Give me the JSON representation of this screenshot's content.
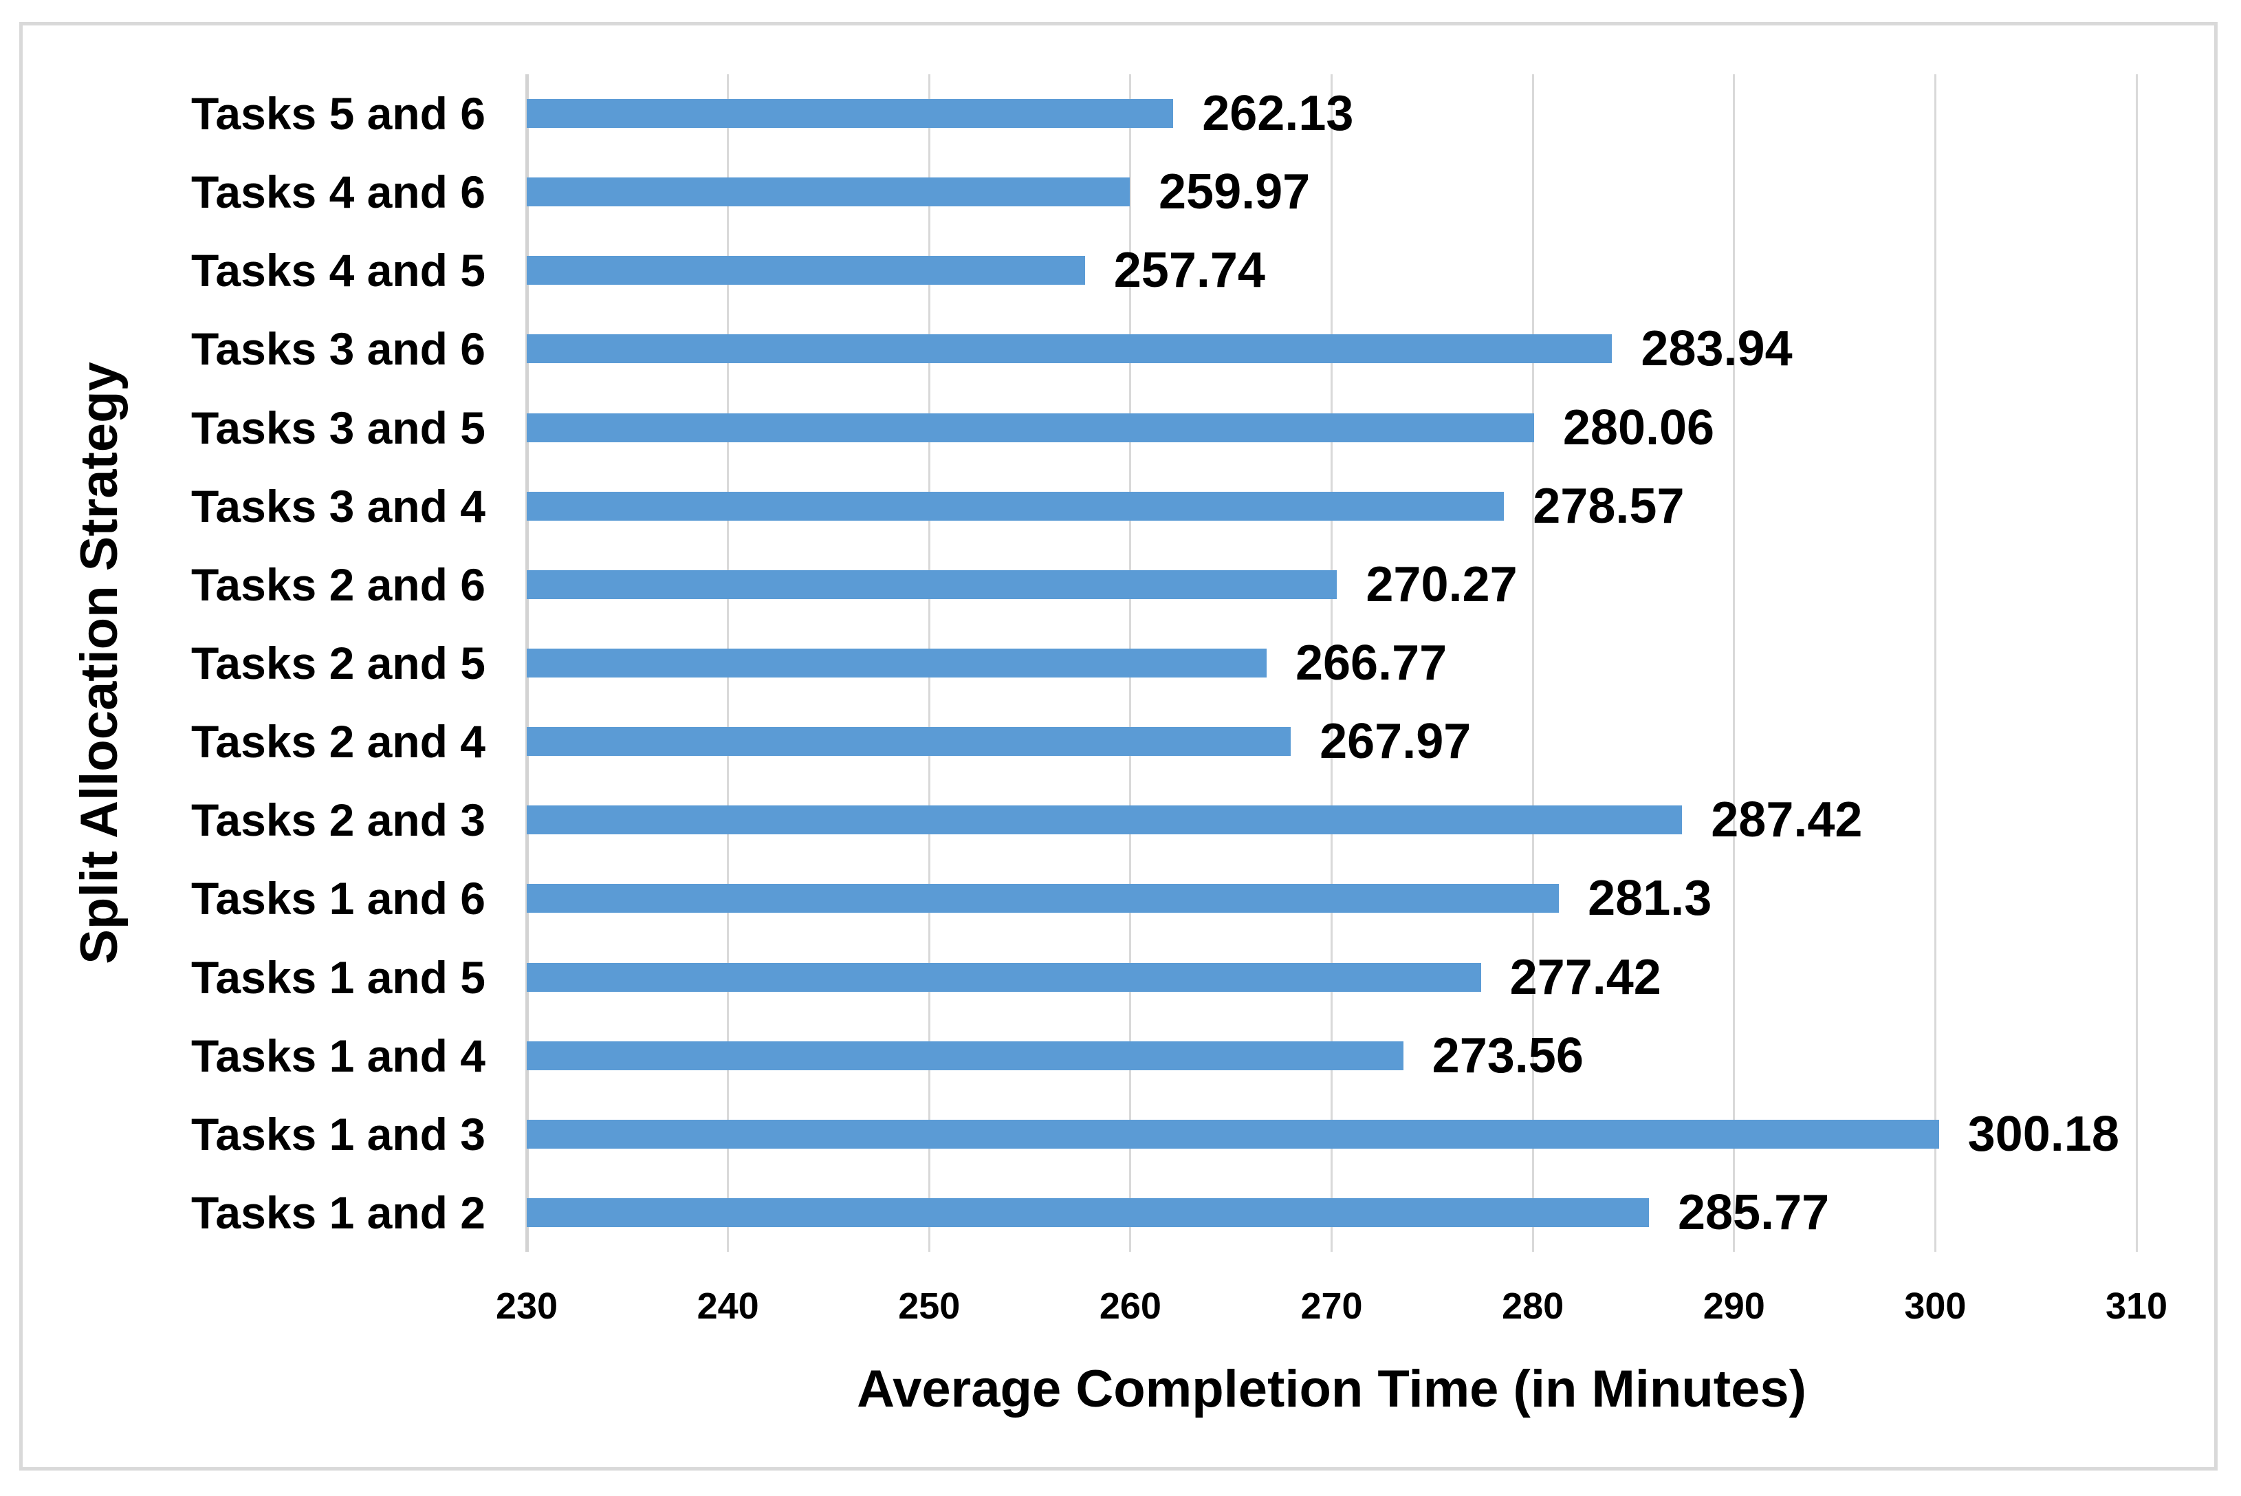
{
  "chart_data": {
    "type": "bar",
    "orientation": "horizontal",
    "xlabel": "Average Completion Time (in Minutes)",
    "ylabel": "Split Allocation Strategy",
    "categories_top_to_bottom": [
      "Tasks 5 and 6",
      "Tasks 4 and 6",
      "Tasks 4 and 5",
      "Tasks 3 and 6",
      "Tasks 3 and 5",
      "Tasks 3 and 4",
      "Tasks 2 and 6",
      "Tasks 2 and 5",
      "Tasks 2 and 4",
      "Tasks 2 and 3",
      "Tasks 1 and 6",
      "Tasks 1 and 5",
      "Tasks 1 and 4",
      "Tasks 1 and 3",
      "Tasks 1 and 2"
    ],
    "values": [
      262.13,
      259.97,
      257.74,
      283.94,
      280.06,
      278.57,
      270.27,
      266.77,
      267.97,
      287.42,
      281.3,
      277.42,
      273.56,
      300.18,
      285.77
    ],
    "value_labels": [
      "262.13",
      "259.97",
      "257.74",
      "283.94",
      "280.06",
      "278.57",
      "270.27",
      "266.77",
      "267.97",
      "287.42",
      "281.3",
      "277.42",
      "273.56",
      "300.18",
      "285.77"
    ],
    "x_ticks": [
      "230",
      "240",
      "250",
      "260",
      "270",
      "280",
      "290",
      "300",
      "310"
    ],
    "xlim": [
      230,
      310
    ],
    "grid": true,
    "legend": false,
    "colors": {
      "bar": "#5B9BD5",
      "gridline": "#D9D9D9",
      "frame_border": "#D9D9D9",
      "text": "#000000",
      "background": "#FFFFFF"
    }
  }
}
